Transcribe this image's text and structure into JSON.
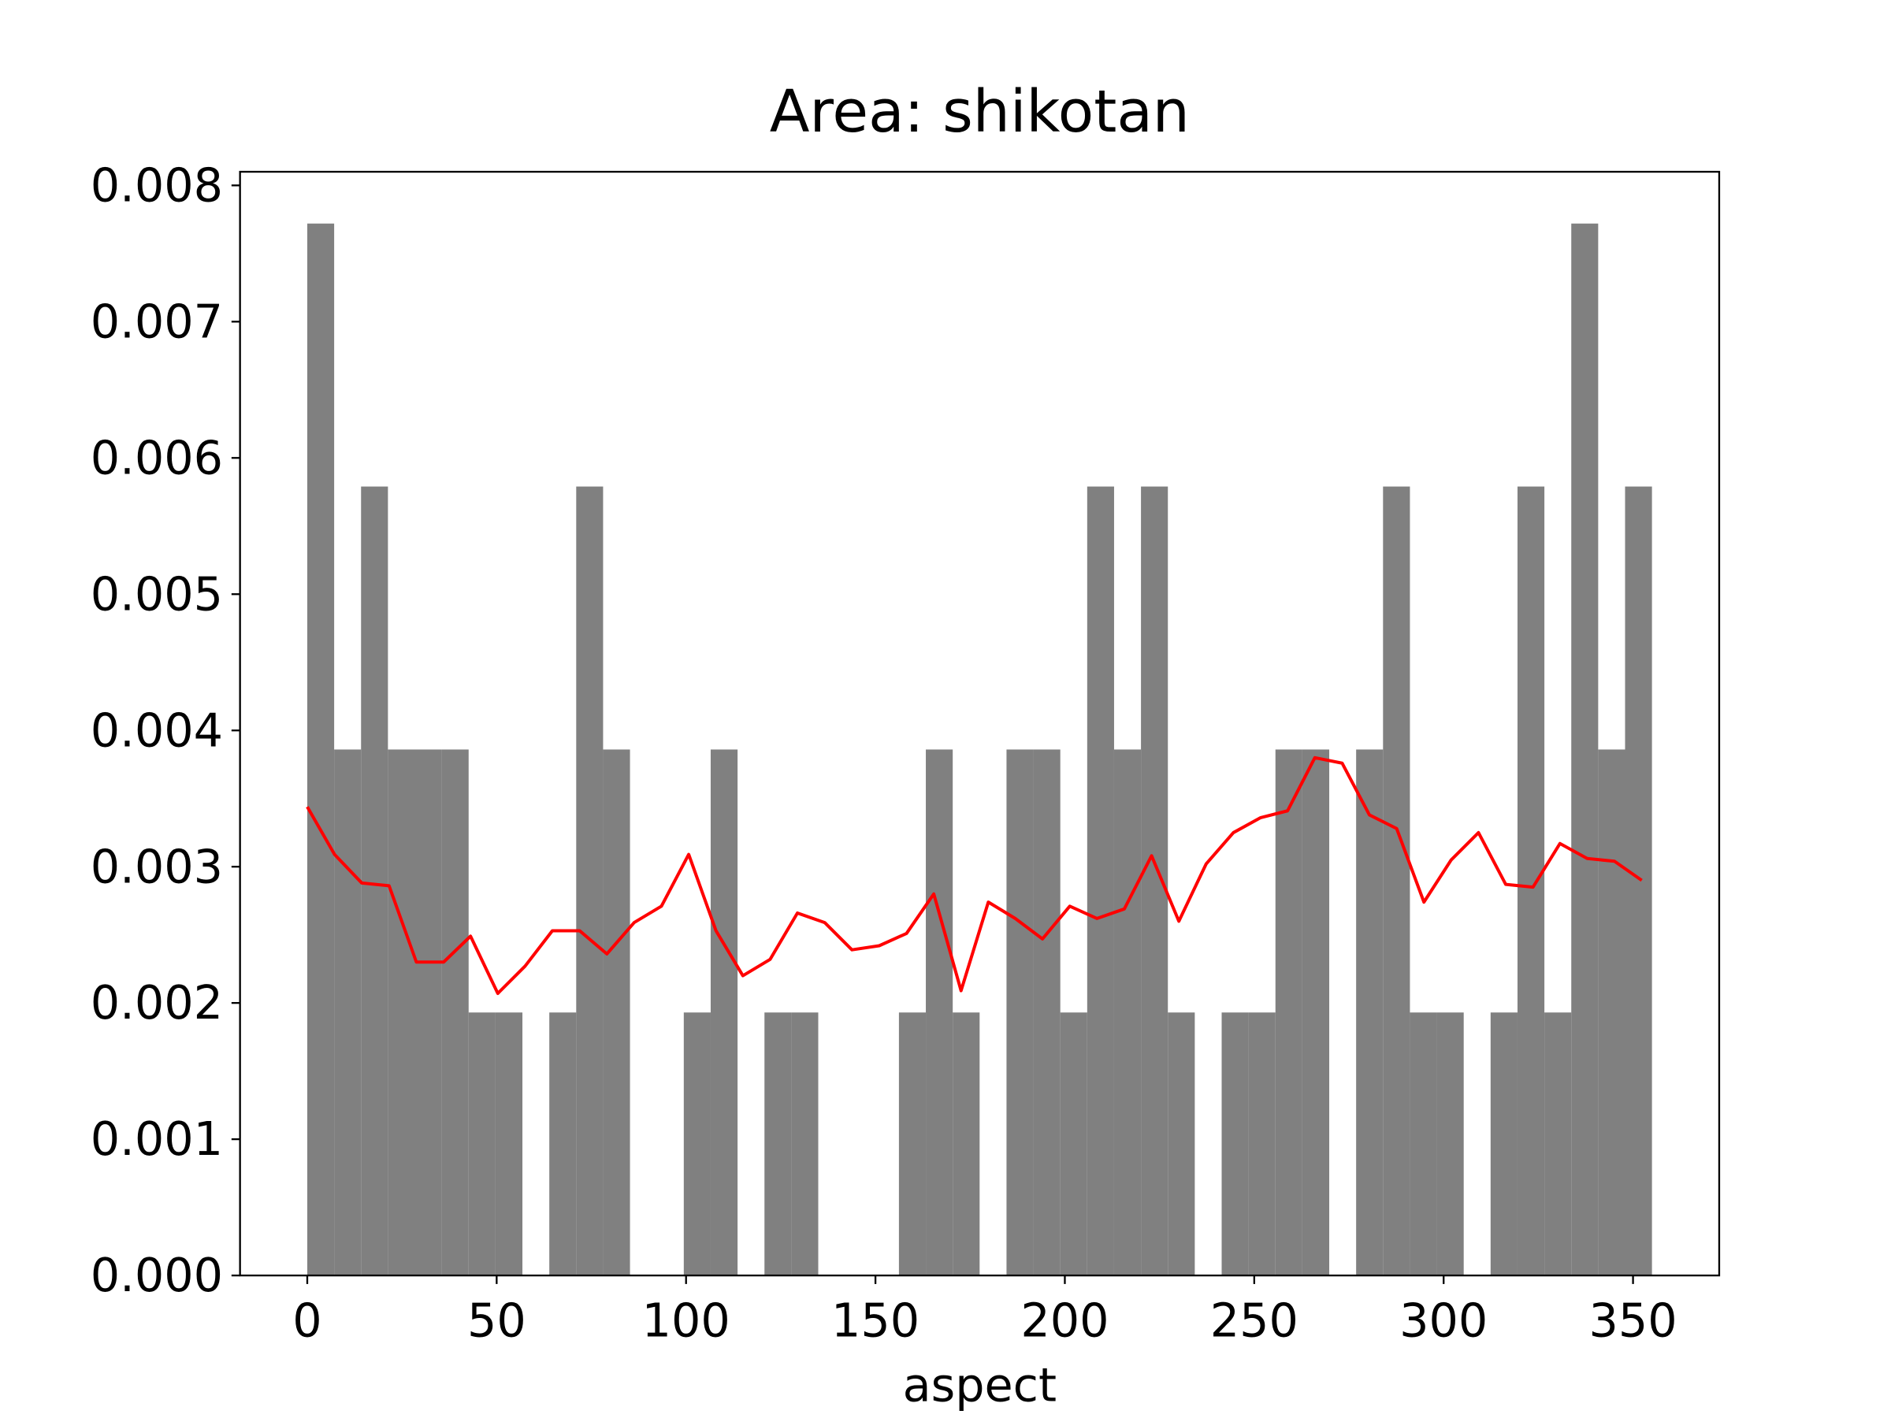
{
  "chart_data": {
    "type": "histogram",
    "title": "Area: shikotan",
    "xlabel": "aspect",
    "bins": [
      0,
      7.1,
      14.2,
      21.3,
      28.4,
      35.5,
      42.6,
      49.7,
      56.8,
      63.9,
      71,
      78.1,
      85.2,
      92.3,
      99.4,
      106.5,
      113.6,
      120.7,
      127.8,
      134.9,
      142,
      149.1,
      156.2,
      163.3,
      170.4,
      177.5,
      184.6,
      191.7,
      198.8,
      205.9,
      213,
      220.1,
      227.2,
      234.3,
      241.4,
      248.5,
      255.6,
      262.7,
      269.8,
      276.9,
      284,
      291.1,
      298.2,
      305.3,
      312.4,
      319.5,
      326.6,
      333.7,
      340.8,
      347.9,
      355
    ],
    "values": [
      0.00772,
      0.00386,
      0.00579,
      0.00386,
      0.00386,
      0.00386,
      0.00193,
      0.00193,
      0,
      0.00193,
      0.00579,
      0.00386,
      0,
      0,
      0.00193,
      0.00386,
      0,
      0.00193,
      0.00193,
      0,
      0,
      0,
      0.00193,
      0.00386,
      0.00193,
      0,
      0.00386,
      0.00386,
      0.00193,
      0.00579,
      0.00386,
      0.00579,
      0.00193,
      0,
      0.00193,
      0.00193,
      0.00386,
      0.00386,
      0,
      0.00386,
      0.00579,
      0.00193,
      0.00193,
      0,
      0.00193,
      0.00579,
      0.00193,
      0.00772,
      0.00386,
      0.00579
    ],
    "color": "#808080",
    "line": {
      "color": "#ff0000",
      "x": [
        0,
        7.2,
        14.4,
        21.6,
        28.8,
        36,
        43.1,
        50.3,
        57.5,
        64.7,
        71.9,
        79.1,
        86.3,
        93.5,
        100.7,
        107.9,
        115,
        122.2,
        129.4,
        136.6,
        143.8,
        151,
        158.2,
        165.4,
        172.6,
        179.8,
        186.9,
        194.1,
        201.3,
        208.5,
        215.7,
        222.9,
        230.1,
        237.3,
        244.5,
        251.7,
        258.8,
        266,
        273.2,
        280.4,
        287.6,
        294.8,
        302,
        309.2,
        316.4,
        323.6,
        330.7,
        337.9,
        345.1,
        352.3
      ],
      "values": [
        0.00344,
        0.00309,
        0.00288,
        0.00286,
        0.0023,
        0.0023,
        0.00249,
        0.00207,
        0.00227,
        0.00253,
        0.00253,
        0.00236,
        0.00259,
        0.00271,
        0.00309,
        0.00253,
        0.0022,
        0.00232,
        0.00266,
        0.00259,
        0.00239,
        0.00242,
        0.00251,
        0.0028,
        0.00209,
        0.00274,
        0.00262,
        0.00247,
        0.00271,
        0.00262,
        0.00269,
        0.00308,
        0.0026,
        0.00302,
        0.00325,
        0.00336,
        0.00341,
        0.0038,
        0.00376,
        0.00338,
        0.00328,
        0.00274,
        0.00305,
        0.00325,
        0.00287,
        0.00285,
        0.00317,
        0.00306,
        0.00304,
        0.0029
      ]
    },
    "xlim": [
      -17.75,
      372.75
    ],
    "ylim": [
      0,
      0.0081
    ],
    "xticks": [
      0,
      50,
      100,
      150,
      200,
      250,
      300,
      350
    ],
    "yticks": [
      {
        "value": 0,
        "label": "0.000"
      },
      {
        "value": 0.001,
        "label": "0.001"
      },
      {
        "value": 0.002,
        "label": "0.002"
      },
      {
        "value": 0.003,
        "label": "0.003"
      },
      {
        "value": 0.004,
        "label": "0.004"
      },
      {
        "value": 0.005,
        "label": "0.005"
      },
      {
        "value": 0.006,
        "label": "0.006"
      },
      {
        "value": 0.007,
        "label": "0.007"
      },
      {
        "value": 0.008,
        "label": "0.008"
      }
    ]
  }
}
